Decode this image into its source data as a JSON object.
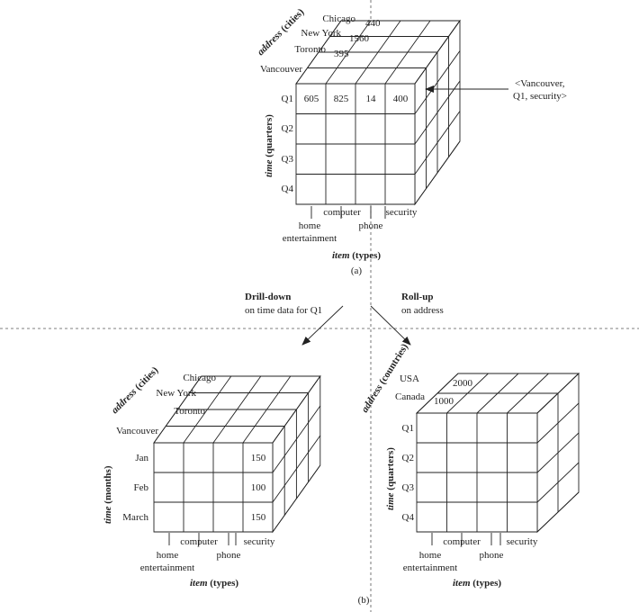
{
  "cube_a": {
    "cities": [
      "Chicago",
      "New York",
      "Toronto",
      "Vancouver"
    ],
    "back_values": [
      "440",
      "1560",
      "395"
    ],
    "quarters": [
      "Q1",
      "Q2",
      "Q3",
      "Q4"
    ],
    "q1_values": [
      "605",
      "825",
      "14",
      "400"
    ],
    "address_label": "address",
    "address_unit": "(cities)",
    "time_label": "time",
    "time_unit": "(quarters)",
    "items": [
      "home",
      "entertainment",
      "computer",
      "phone",
      "security"
    ],
    "item_label": "item",
    "item_unit": "(types)",
    "callout_line1": "<Vancouver,",
    "callout_line2": "Q1, security>",
    "caption": "(a)"
  },
  "operations": {
    "drill_title": "Drill-down",
    "drill_sub": "on time data for Q1",
    "roll_title": "Roll-up",
    "roll_sub": "on address"
  },
  "cube_drill": {
    "cities": [
      "Chicago",
      "New York",
      "Toronto",
      "Vancouver"
    ],
    "months": [
      "Jan",
      "Feb",
      "March"
    ],
    "security_values": [
      "150",
      "100",
      "150"
    ],
    "address_label": "address",
    "address_unit": "(cities)",
    "time_label": "time",
    "time_unit": "(months)",
    "items": [
      "home",
      "entertainment",
      "computer",
      "phone",
      "security"
    ],
    "item_label": "item",
    "item_unit": "(types)"
  },
  "cube_roll": {
    "countries": [
      "USA",
      "Canada"
    ],
    "back_values": [
      "2000",
      "1000"
    ],
    "quarters": [
      "Q1",
      "Q2",
      "Q3",
      "Q4"
    ],
    "address_label": "address",
    "address_unit": "(countries)",
    "time_label": "time",
    "time_unit": "(quarters)",
    "items": [
      "home",
      "entertainment",
      "computer",
      "phone",
      "security"
    ],
    "item_label": "item",
    "item_unit": "(types)"
  },
  "caption_b": "(b)"
}
